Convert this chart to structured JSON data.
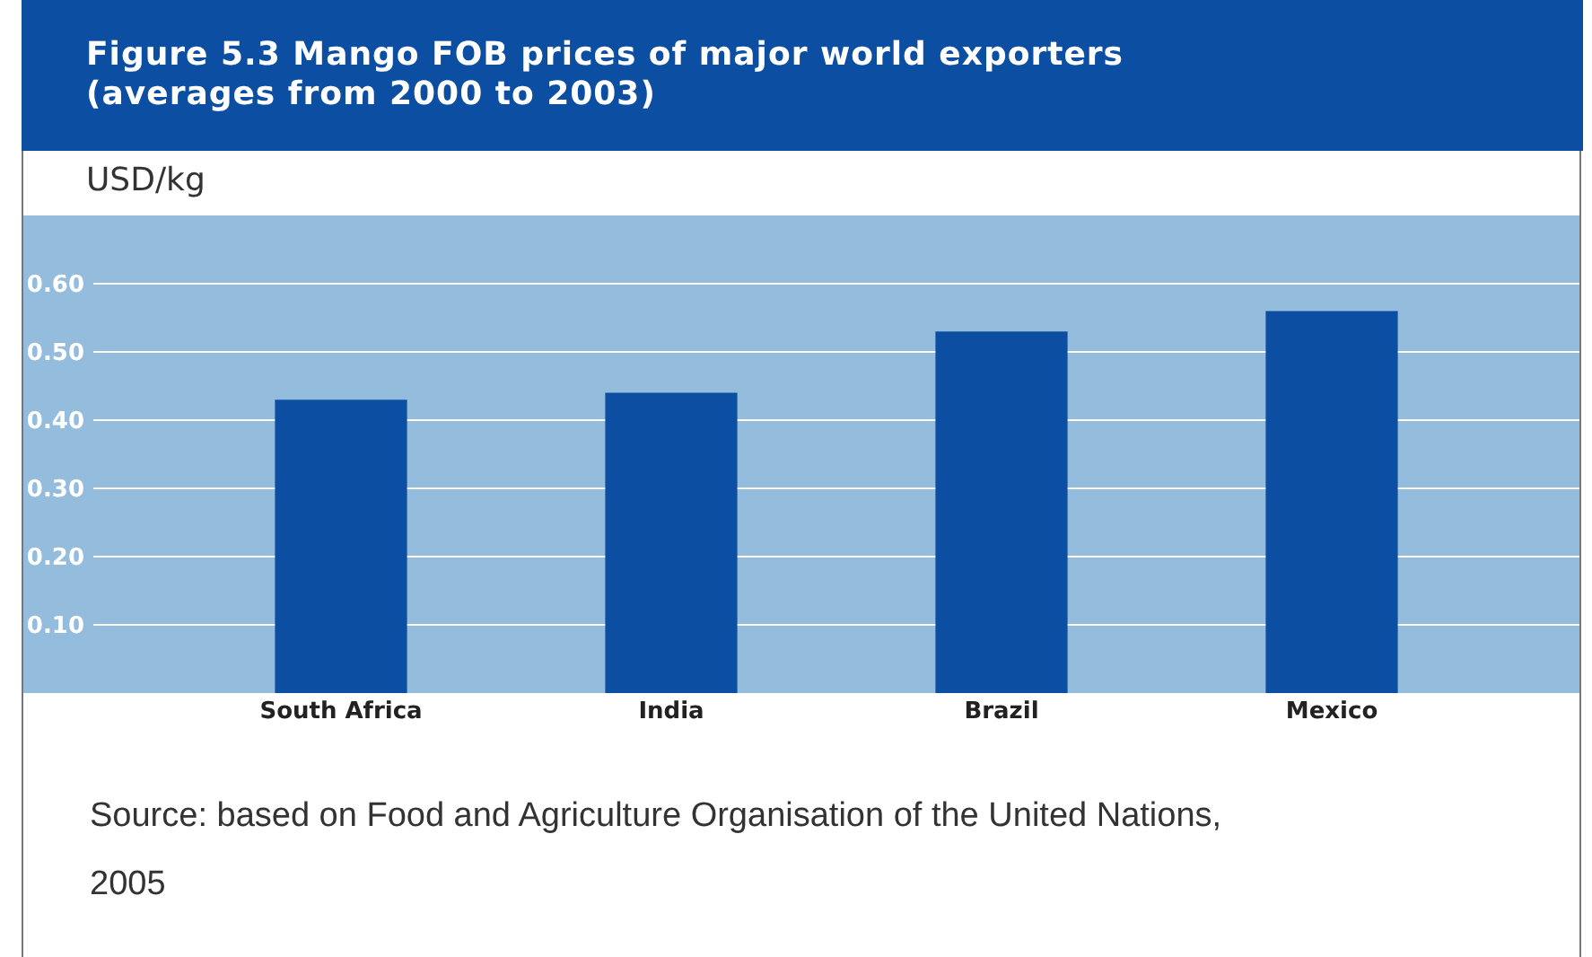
{
  "chart_data": {
    "type": "bar",
    "title": "Figure 5.3    Mango FOB prices of major world exporters\n(averages from 2000 to 2003)",
    "ylabel": "USD/kg",
    "categories": [
      "South Africa",
      "India",
      "Brazil",
      "Mexico"
    ],
    "values": [
      0.43,
      0.44,
      0.53,
      0.56
    ],
    "color": "#0b4ea2",
    "ylim": [
      0,
      0.7
    ],
    "yticks": [
      {
        "value": 0.1,
        "label": "0.10"
      },
      {
        "value": 0.2,
        "label": "0.20"
      },
      {
        "value": 0.3,
        "label": "0.30"
      },
      {
        "value": 0.4,
        "label": "0.40"
      },
      {
        "value": 0.5,
        "label": "0.50"
      },
      {
        "value": 0.6,
        "label": "0.60"
      }
    ],
    "grid": "y",
    "legend": false,
    "annotations": [
      "Source: based on Food and Agriculture Organisation of the United Nations, 2005"
    ]
  }
}
